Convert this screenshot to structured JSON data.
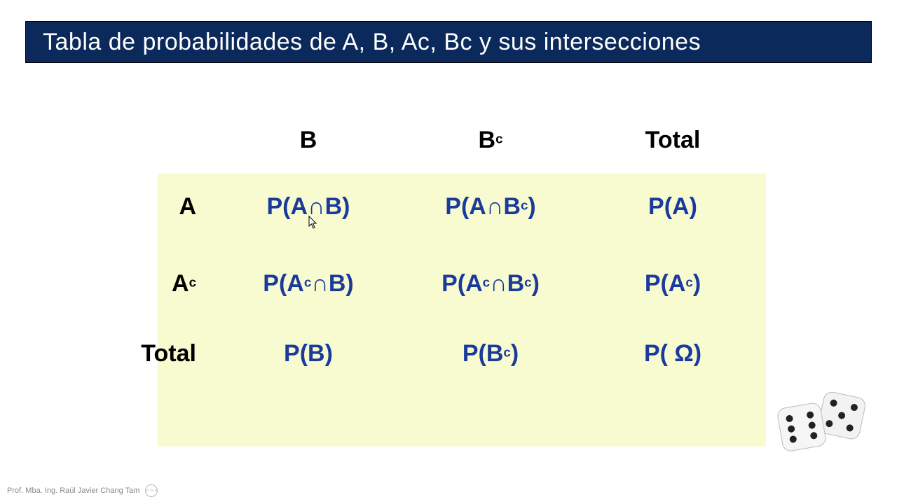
{
  "colors": {
    "title_bg": "#0b2a5b",
    "title_fg": "#ffffff",
    "header_fg": "#000000",
    "cell_fg": "#1a3a9c",
    "highlight_bg": "#f8fbd0",
    "page_bg": "#ffffff",
    "footer_fg": "#888888"
  },
  "title": "Tabla de probabilidades de A, B, Ac, Bc  y sus  intersecciones",
  "table": {
    "col_headers": [
      "B",
      "B<c>",
      "Total"
    ],
    "row_headers": [
      "A",
      "A<c>",
      "Total"
    ],
    "cells": [
      [
        "P(A∩B)",
        "P(A∩B<c>)",
        "P(A)"
      ],
      [
        "P(A<c>∩B)",
        "P(A<c>∩B<c>)",
        "P(A<c>)"
      ],
      [
        "P(B)",
        "P(B<c>)",
        "P( Ω)"
      ]
    ],
    "header_fontsize": 34,
    "cell_fontsize": 34
  },
  "footer": {
    "author": "Prof. Mba. Ing. Raúl Javier Chang Tam",
    "menu_glyph": "∘∘∘"
  },
  "decor": {
    "dice_icon": "dice-pair"
  }
}
